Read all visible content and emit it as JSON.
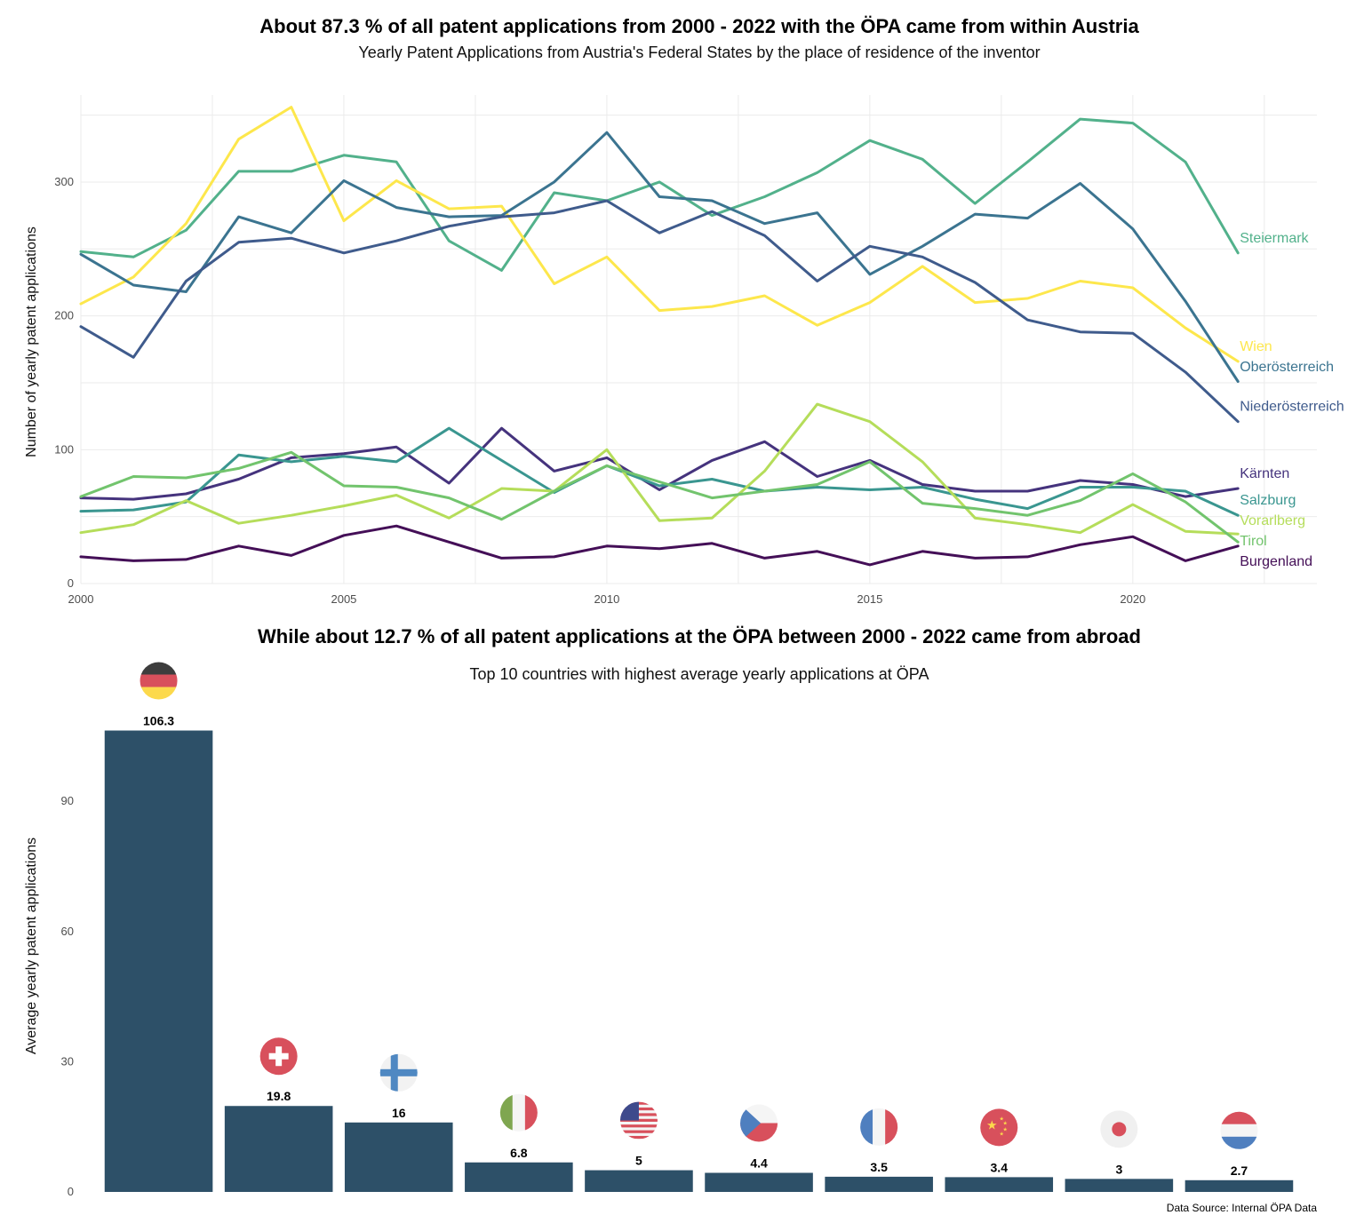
{
  "colors": {
    "Steiermark": "#52b18b",
    "Wien": "#fde74c",
    "Oberösterreich": "#3b7490",
    "Niederösterreich": "#3f5b8c",
    "Kärnten": "#45337d",
    "Salzburg": "#3a9690",
    "Vorarlberg": "#b5dd5a",
    "Tirol": "#72c46d",
    "Burgenland": "#440f57",
    "bar": "#2d5068"
  },
  "chart_data": [
    {
      "type": "line",
      "title": "About 87.3 % of all patent applications from 2000 - 2022 with the ÖPA came from within Austria",
      "subtitle": "Yearly Patent Applications from Austria's Federal States by the place of residence of the inventor",
      "xlabel": "",
      "ylabel": "Number of yearly patent applications",
      "xlim": [
        2000,
        2023.5
      ],
      "ylim": [
        0,
        365
      ],
      "x_ticks": [
        "2000",
        "2005",
        "2010",
        "2015",
        "2020"
      ],
      "y_ticks": [
        "0",
        "100",
        "200",
        "300"
      ],
      "x": [
        2000,
        2001,
        2002,
        2003,
        2004,
        2005,
        2006,
        2007,
        2008,
        2009,
        2010,
        2011,
        2012,
        2013,
        2014,
        2015,
        2016,
        2017,
        2018,
        2019,
        2020,
        2021,
        2022
      ],
      "grid": true,
      "legend": "direct labels at right",
      "series": [
        {
          "name": "Steiermark",
          "values": [
            248,
            244,
            264,
            308,
            308,
            320,
            315,
            256,
            234,
            292,
            286,
            300,
            275,
            289,
            307,
            331,
            317,
            284,
            315,
            347,
            344,
            315,
            247
          ]
        },
        {
          "name": "Wien",
          "values": [
            209,
            229,
            269,
            332,
            356,
            271,
            301,
            280,
            282,
            224,
            244,
            204,
            207,
            215,
            193,
            210,
            237,
            210,
            213,
            226,
            221,
            191,
            166
          ]
        },
        {
          "name": "Oberösterreich",
          "values": [
            246,
            223,
            218,
            274,
            262,
            301,
            281,
            274,
            275,
            300,
            337,
            289,
            286,
            269,
            277,
            231,
            252,
            276,
            273,
            299,
            265,
            211,
            151
          ]
        },
        {
          "name": "Niederösterreich",
          "values": [
            192,
            169,
            226,
            255,
            258,
            247,
            256,
            267,
            274,
            277,
            286,
            262,
            278,
            260,
            226,
            252,
            244,
            225,
            197,
            188,
            187,
            158,
            121
          ]
        },
        {
          "name": "Kärnten",
          "values": [
            64,
            63,
            67,
            78,
            94,
            97,
            102,
            75,
            116,
            84,
            94,
            70,
            92,
            106,
            80,
            92,
            74,
            69,
            69,
            77,
            74,
            65,
            71
          ]
        },
        {
          "name": "Salzburg",
          "values": [
            54,
            55,
            61,
            96,
            91,
            95,
            91,
            116,
            92,
            68,
            88,
            73,
            78,
            69,
            72,
            70,
            72,
            63,
            56,
            72,
            72,
            69,
            51
          ]
        },
        {
          "name": "Vorarlberg",
          "values": [
            38,
            44,
            62,
            45,
            51,
            58,
            66,
            49,
            71,
            69,
            100,
            47,
            49,
            84,
            134,
            121,
            91,
            49,
            44,
            38,
            59,
            39,
            37
          ]
        },
        {
          "name": "Tirol",
          "values": [
            65,
            80,
            79,
            86,
            98,
            73,
            72,
            64,
            48,
            69,
            88,
            76,
            64,
            69,
            74,
            91,
            60,
            56,
            51,
            62,
            82,
            61,
            31
          ]
        },
        {
          "name": "Burgenland",
          "values": [
            20,
            17,
            18,
            28,
            21,
            36,
            43,
            31,
            19,
            20,
            28,
            26,
            30,
            19,
            24,
            14,
            24,
            19,
            20,
            29,
            35,
            17,
            28
          ]
        }
      ]
    },
    {
      "type": "bar",
      "title": "While about 12.7 % of all patent applications at the ÖPA between 2000 - 2022 came from abroad",
      "subtitle": "Top 10 countries with highest average yearly applications at ÖPA",
      "xlabel": "",
      "ylabel": "Average yearly patent applications",
      "ylim": [
        0,
        115
      ],
      "y_ticks": [
        "0",
        "30",
        "60",
        "90"
      ],
      "grid": false,
      "categories": [
        "de-flag-icon",
        "ch-flag-icon",
        "fi-flag-icon",
        "it-flag-icon",
        "us-flag-icon",
        "cz-flag-icon",
        "fr-flag-icon",
        "cn-flag-icon",
        "jp-flag-icon",
        "nl-flag-icon"
      ],
      "values": [
        106.3,
        19.8,
        16,
        6.8,
        5,
        4.4,
        3.5,
        3.4,
        3,
        2.7
      ],
      "value_labels": [
        "106.3",
        "19.8",
        "16",
        "6.8",
        "5",
        "4.4",
        "3.5",
        "3.4",
        "3",
        "2.7"
      ]
    }
  ],
  "source": "Data Source: Internal ÖPA Data"
}
